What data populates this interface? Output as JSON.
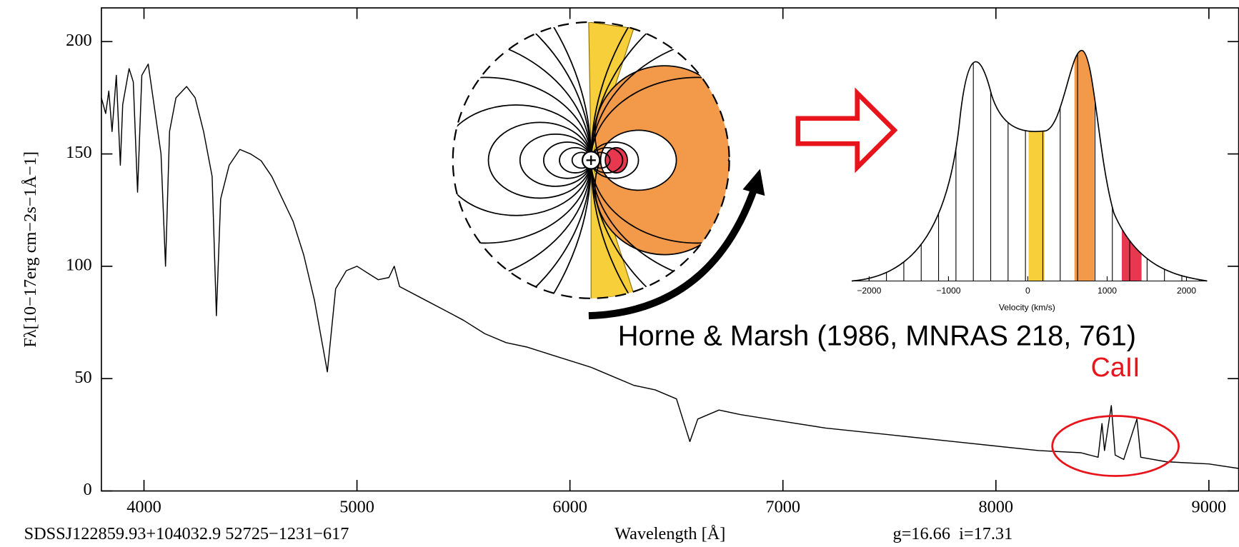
{
  "chart_data": [
    {
      "type": "line",
      "xlabel": "Wavelength [Å]",
      "ylabel": "Fλ[10−17erg cm−2s−1Å−1]",
      "object": "SDSSJ122859.93+104032.9 52725−1231−617",
      "magnitudes": "g=16.66  i=17.31",
      "annotations": [
        "Horne & Marsh (1986, MNRAS 218, 761)",
        "CaII"
      ],
      "color": "#000000",
      "x": [
        3800,
        3820,
        3835,
        3850,
        3870,
        3889,
        3900,
        3930,
        3950,
        3970,
        3990,
        4020,
        4050,
        4080,
        4101,
        4120,
        4150,
        4200,
        4240,
        4280,
        4320,
        4340,
        4360,
        4400,
        4450,
        4500,
        4550,
        4600,
        4650,
        4700,
        4750,
        4800,
        4861,
        4900,
        4950,
        5000,
        5050,
        5100,
        5150,
        5175,
        5200,
        5300,
        5400,
        5500,
        5600,
        5700,
        5800,
        5900,
        6000,
        6100,
        6200,
        6300,
        6400,
        6500,
        6563,
        6600,
        6700,
        6800,
        7000,
        7200,
        7500,
        7800,
        8000,
        8200,
        8400,
        8480,
        8498,
        8510,
        8542,
        8560,
        8600,
        8662,
        8680,
        8800,
        9000,
        9140
      ],
      "values": [
        175,
        168,
        178,
        160,
        185,
        145,
        172,
        188,
        182,
        133,
        185,
        190,
        170,
        150,
        100,
        160,
        175,
        180,
        175,
        160,
        140,
        78,
        130,
        145,
        152,
        150,
        147,
        140,
        130,
        120,
        105,
        85,
        53,
        90,
        98,
        100,
        97,
        94,
        95,
        100,
        91,
        86,
        81,
        76,
        70,
        66,
        64,
        61,
        58,
        55,
        51,
        47,
        45,
        41,
        22,
        32,
        36,
        34,
        31,
        28,
        25,
        22,
        20,
        18,
        17,
        15,
        30,
        18,
        38,
        16,
        14,
        32,
        15,
        13,
        12,
        10
      ],
      "xlim": [
        3800,
        9140
      ],
      "ylim": [
        0,
        215
      ],
      "xticks": [
        4000,
        5000,
        6000,
        7000,
        8000,
        9000
      ],
      "yticks": [
        0,
        50,
        100,
        150,
        200
      ]
    },
    {
      "type": "profile",
      "xlabel": "Velocity (km/s)",
      "xlim": [
        -2220,
        2260
      ],
      "xticks": [
        {
          "value": -2000,
          "label": "−2000"
        },
        {
          "value": -1000,
          "label": "−1000"
        },
        0,
        1000,
        2000
      ]
    }
  ]
}
